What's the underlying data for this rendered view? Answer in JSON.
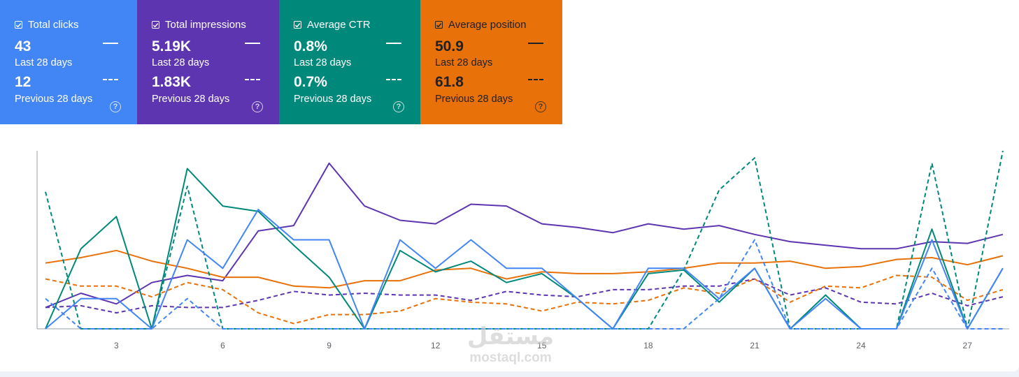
{
  "cards": [
    {
      "label": "Total clicks",
      "current": "43",
      "current_period": "Last 28 days",
      "previous": "12",
      "previous_period": "Previous 28 days",
      "color": "#4285f4",
      "text_color": "#ffffff",
      "icon": "help-icon"
    },
    {
      "label": "Total impressions",
      "current": "5.19K",
      "current_period": "Last 28 days",
      "previous": "1.83K",
      "previous_period": "Previous 28 days",
      "color": "#5e35b1",
      "text_color": "#ffffff",
      "icon": "help-icon"
    },
    {
      "label": "Average CTR",
      "current": "0.8%",
      "current_period": "Last 28 days",
      "previous": "0.7%",
      "previous_period": "Previous 28 days",
      "color": "#00897b",
      "text_color": "#ffffff",
      "icon": "help-icon"
    },
    {
      "label": "Average position",
      "current": "50.9",
      "current_period": "Last 28 days",
      "previous": "61.8",
      "previous_period": "Previous 28 days",
      "color": "#e8710a",
      "text_color": "#202124",
      "icon": "help-icon"
    }
  ],
  "watermark": {
    "arabic": "مستقل",
    "latin": "mostaql.com"
  },
  "chart_data": {
    "type": "line",
    "x": [
      1,
      2,
      3,
      4,
      5,
      6,
      7,
      8,
      9,
      10,
      11,
      12,
      13,
      14,
      15,
      16,
      17,
      18,
      19,
      20,
      21,
      22,
      23,
      24,
      25,
      26,
      27,
      28
    ],
    "x_ticks": [
      3,
      6,
      9,
      12,
      15,
      18,
      21,
      24,
      27
    ],
    "ylim": [
      0,
      100
    ],
    "grid": false,
    "legend": "none",
    "series": [
      {
        "name": "Total impressions (last 28 days)",
        "color": "#5e35b1",
        "dashed": false,
        "values": [
          12,
          20,
          14,
          26,
          30,
          27,
          55,
          58,
          93,
          69,
          61,
          59,
          70,
          69,
          59,
          57,
          54,
          59,
          56,
          58,
          53,
          49,
          47,
          45,
          45,
          49,
          48,
          53
        ]
      },
      {
        "name": "Total impressions (previous 28 days)",
        "color": "#5e35b1",
        "dashed": true,
        "values": [
          12,
          13,
          9,
          13,
          12,
          12,
          16,
          21,
          19,
          20,
          19,
          19,
          16,
          21,
          19,
          18,
          22,
          22,
          24,
          24,
          28,
          19,
          23,
          15,
          14,
          20,
          13,
          18
        ]
      },
      {
        "name": "Average position (last 28 days)",
        "color": "#e8710a",
        "dashed": false,
        "values": [
          37,
          40,
          44,
          38,
          34,
          29,
          29,
          24,
          23,
          27,
          27,
          33,
          34,
          28,
          32,
          31,
          31,
          32,
          34,
          37,
          37,
          38,
          34,
          35,
          39,
          40,
          36,
          41
        ]
      },
      {
        "name": "Average position (previous 28 days)",
        "color": "#e8710a",
        "dashed": true,
        "values": [
          28,
          24,
          24,
          18,
          26,
          22,
          9,
          3,
          8,
          8,
          10,
          17,
          15,
          14,
          10,
          15,
          14,
          16,
          23,
          20,
          28,
          15,
          24,
          23,
          30,
          29,
          16,
          22
        ]
      },
      {
        "name": "Average CTR (last 28 days)",
        "color": "#00897b",
        "dashed": false,
        "values": [
          0,
          45,
          63,
          0,
          90,
          69,
          66,
          47,
          29,
          0,
          44,
          32,
          38,
          26,
          31,
          17,
          0,
          31,
          33,
          15,
          34,
          0,
          19,
          0,
          0,
          56,
          0,
          34
        ]
      },
      {
        "name": "Average CTR (previous 28 days)",
        "color": "#00897b",
        "dashed": true,
        "values": [
          77,
          0,
          0,
          0,
          80,
          0,
          0,
          0,
          0,
          0,
          0,
          0,
          0,
          0,
          0,
          0,
          0,
          0,
          33,
          78,
          96,
          0,
          0,
          0,
          0,
          93,
          0,
          100
        ]
      },
      {
        "name": "Total clicks (last 28 days)",
        "color": "#4285f4",
        "dashed": false,
        "values": [
          0,
          17,
          17,
          0,
          50,
          34,
          67,
          50,
          50,
          0,
          50,
          34,
          50,
          34,
          34,
          17,
          0,
          34,
          34,
          17,
          34,
          0,
          17,
          0,
          0,
          50,
          0,
          34
        ]
      },
      {
        "name": "Total clicks (previous 28 days)",
        "color": "#4285f4",
        "dashed": true,
        "values": [
          17,
          0,
          0,
          0,
          17,
          0,
          0,
          0,
          0,
          0,
          0,
          0,
          0,
          0,
          0,
          0,
          0,
          0,
          0,
          17,
          50,
          0,
          0,
          0,
          0,
          34,
          0,
          0
        ]
      }
    ]
  }
}
